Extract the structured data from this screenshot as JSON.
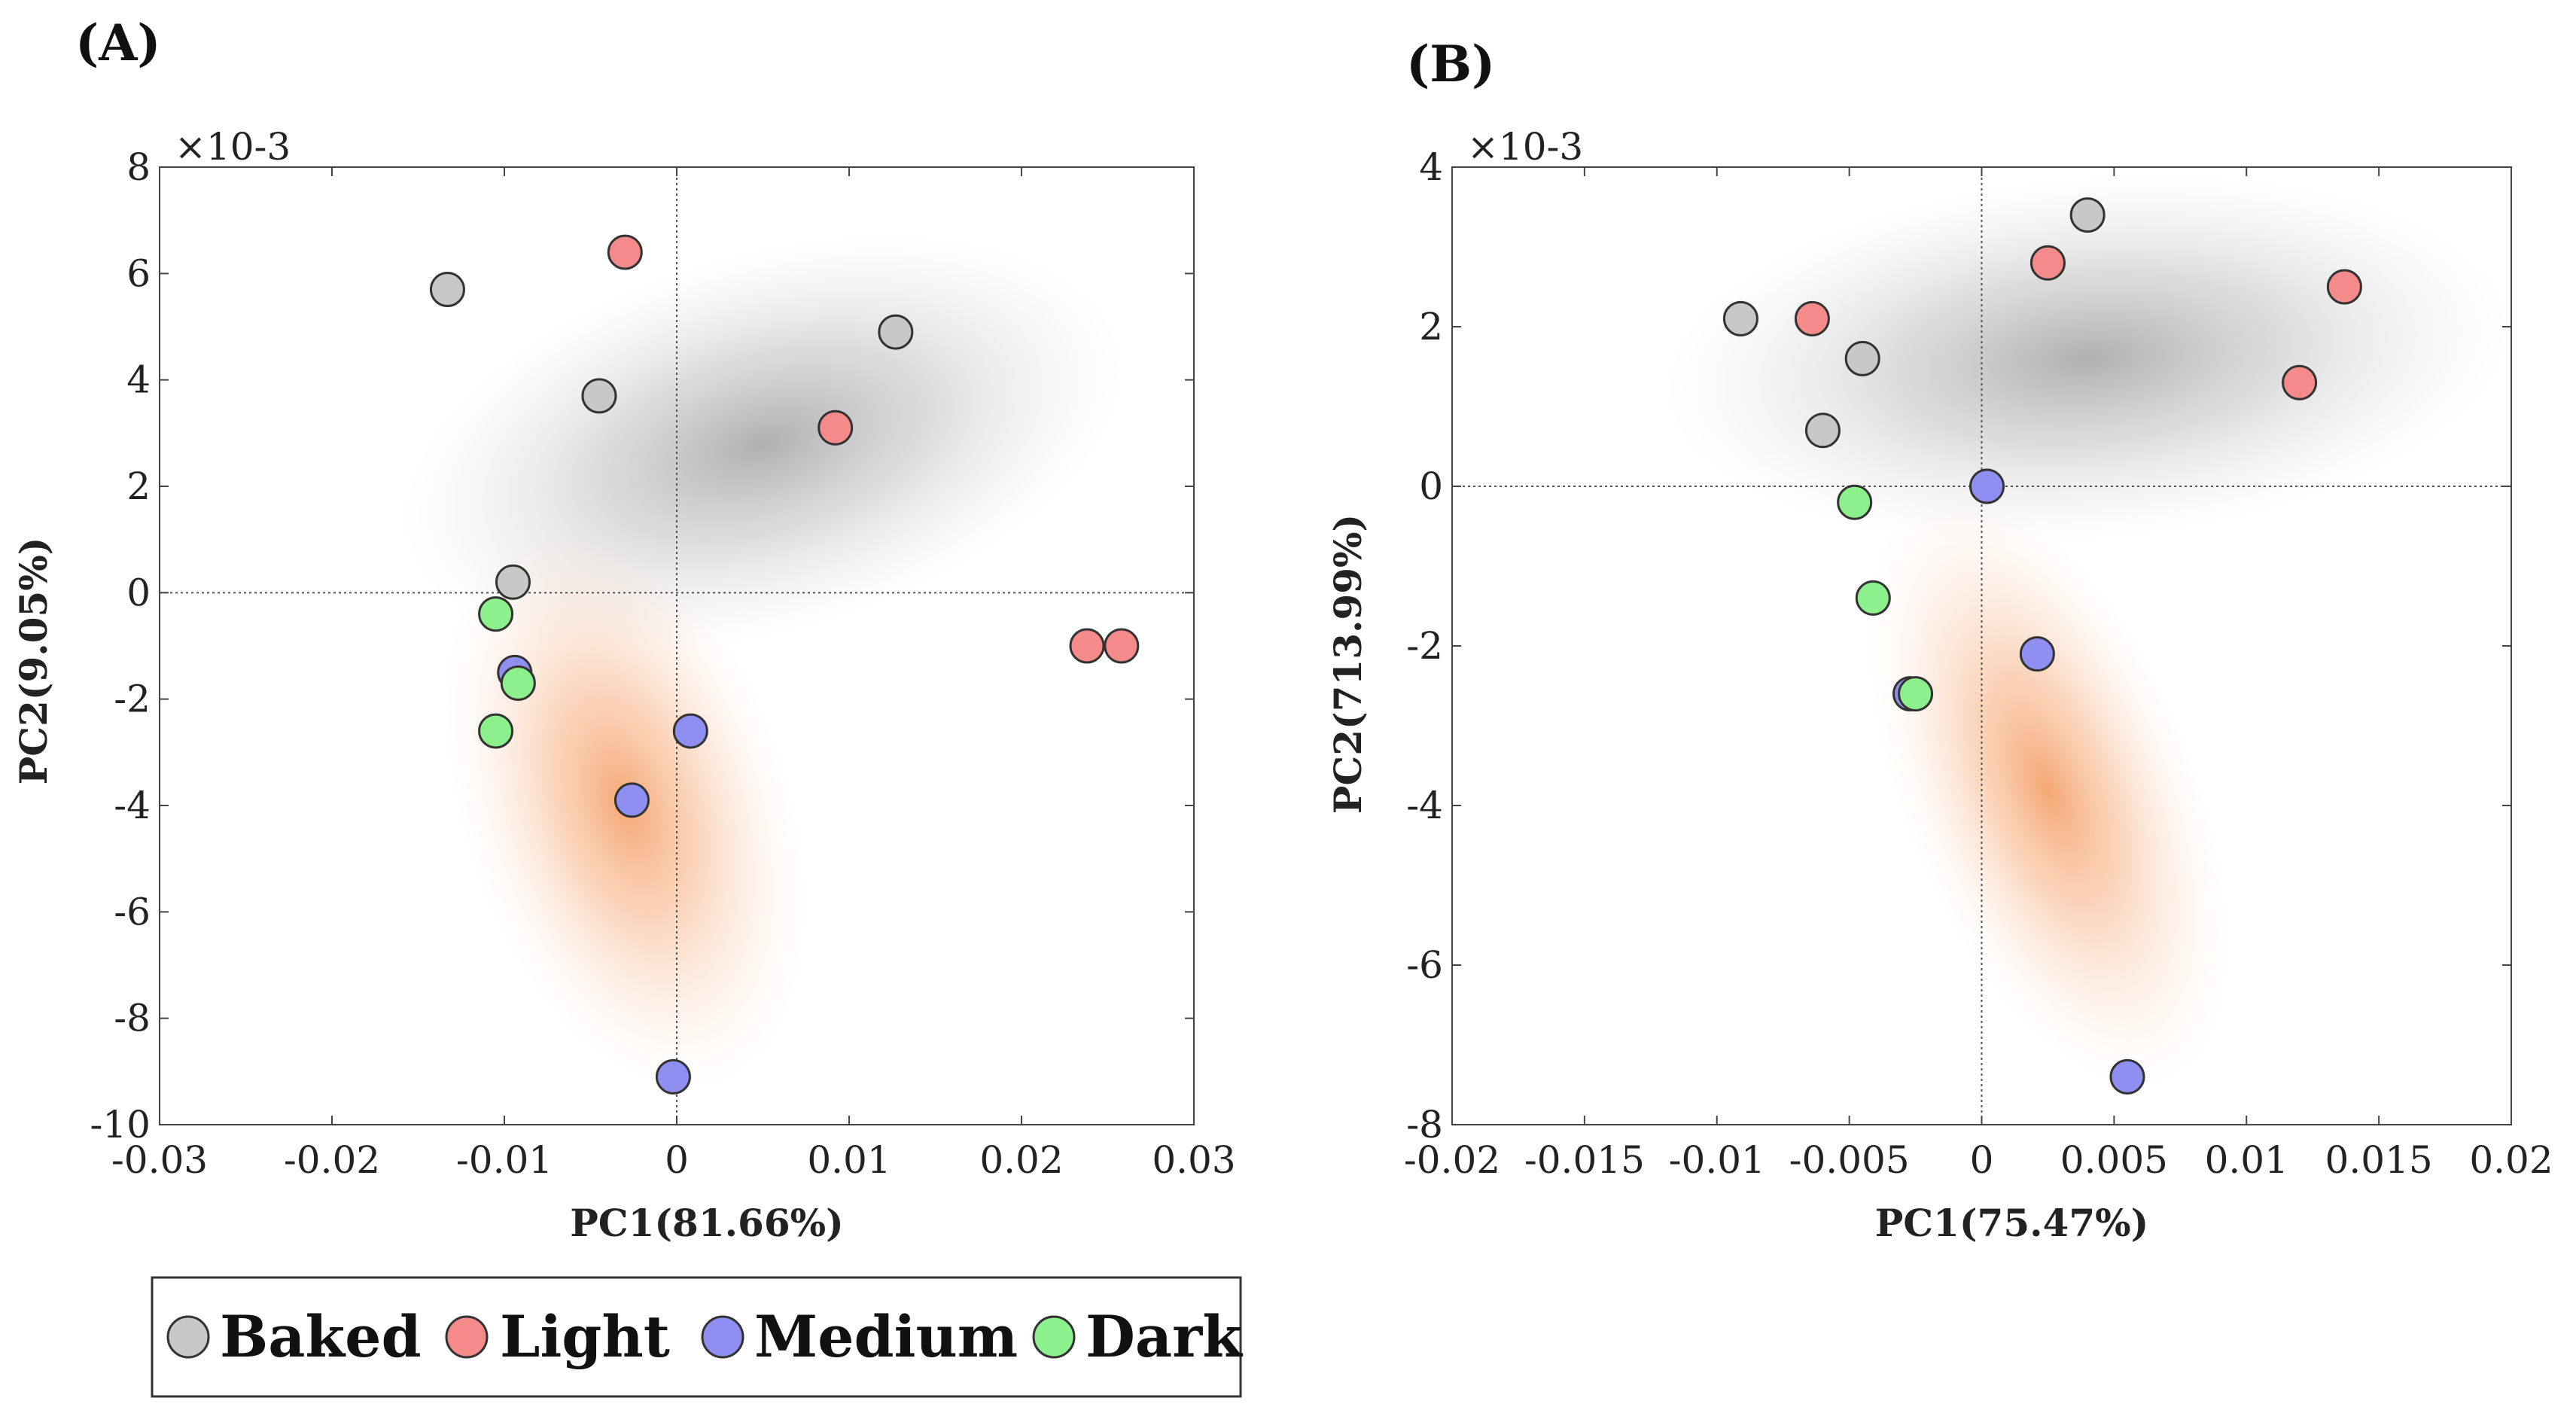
{
  "colors": {
    "Baked": "#c8c8c8",
    "Light": "#f48a8a",
    "Medium": "#8f8ff2",
    "Dark": "#8cf08c",
    "grayCloud": "#9a9a9a",
    "orangeCloud": "#f29a5c"
  },
  "legend": {
    "items": [
      {
        "label": "Baked",
        "color": "#c8c8c8"
      },
      {
        "label": "Light",
        "color": "#f48a8a"
      },
      {
        "label": "Medium",
        "color": "#8f8ff2"
      },
      {
        "label": "Dark",
        "color": "#8cf08c"
      }
    ]
  },
  "chart_data": [
    {
      "type": "scatter",
      "panel": "(A)",
      "xlabel": "PC1(81.66%)",
      "ylabel": "PC2(9.05%)",
      "y_multiplier": "×10-3",
      "xlim": [
        -0.03,
        0.03
      ],
      "ylim": [
        -10,
        8
      ],
      "xticks": [
        "-0.03",
        "-0.02",
        "-0.01",
        "0",
        "0.01",
        "0.02",
        "0.03"
      ],
      "yticks": [
        "8",
        "6",
        "4",
        "2",
        "0",
        "-2",
        "-4",
        "-6",
        "-8",
        "-10"
      ],
      "series": [
        {
          "name": "Baked",
          "points": [
            [
              -0.0133,
              5.7
            ],
            [
              -0.0045,
              3.7
            ],
            [
              0.0127,
              4.9
            ],
            [
              -0.0095,
              0.2
            ]
          ]
        },
        {
          "name": "Light",
          "points": [
            [
              -0.003,
              6.4
            ],
            [
              0.0092,
              3.1
            ],
            [
              0.0238,
              -1.0
            ],
            [
              0.0258,
              -1.0
            ]
          ]
        },
        {
          "name": "Medium",
          "points": [
            [
              -0.0094,
              -1.5
            ],
            [
              0.0008,
              -2.6
            ],
            [
              -0.0026,
              -3.9
            ],
            [
              -0.0002,
              -9.1
            ]
          ]
        },
        {
          "name": "Dark",
          "points": [
            [
              -0.0105,
              -0.4
            ],
            [
              -0.0092,
              -1.7
            ],
            [
              -0.0105,
              -2.6
            ]
          ]
        }
      ],
      "clouds": [
        {
          "name": "gray",
          "center": [
            0.005,
            2.8
          ],
          "rx": 0.0215,
          "ry": 3.6,
          "angle": -16
        },
        {
          "name": "orange",
          "center": [
            -0.003,
            -4.0
          ],
          "rx": 0.0095,
          "ry": 5.6,
          "angle": -18
        }
      ]
    },
    {
      "type": "scatter",
      "panel": "(B)",
      "xlabel": "PC1(75.47%)",
      "ylabel": "PC2(713.99%)",
      "y_multiplier": "×10-3",
      "xlim": [
        -0.02,
        0.02
      ],
      "ylim": [
        -8,
        4
      ],
      "xticks": [
        "-0.02",
        "-0.015",
        "-0.01",
        "-0.005",
        "0",
        "0.005",
        "0.01",
        "0.015",
        "0.02"
      ],
      "yticks": [
        "4",
        "2",
        "0",
        "-2",
        "-4",
        "-6",
        "-8"
      ],
      "series": [
        {
          "name": "Baked",
          "points": [
            [
              0.004,
              3.4
            ],
            [
              -0.0091,
              2.1
            ],
            [
              -0.0045,
              1.6
            ],
            [
              -0.006,
              0.7
            ]
          ]
        },
        {
          "name": "Light",
          "points": [
            [
              0.0025,
              2.8
            ],
            [
              -0.0064,
              2.1
            ],
            [
              0.0137,
              2.5
            ],
            [
              0.012,
              1.3
            ]
          ]
        },
        {
          "name": "Medium",
          "points": [
            [
              0.0002,
              0.0
            ],
            [
              0.0021,
              -2.1
            ],
            [
              -0.0027,
              -2.6
            ],
            [
              0.0055,
              -7.4
            ]
          ]
        },
        {
          "name": "Dark",
          "points": [
            [
              -0.0048,
              -0.2
            ],
            [
              -0.0041,
              -1.4
            ],
            [
              -0.0025,
              -2.6
            ]
          ]
        }
      ],
      "clouds": [
        {
          "name": "gray",
          "center": [
            0.004,
            1.6
          ],
          "rx": 0.016,
          "ry": 2.3,
          "angle": -5
        },
        {
          "name": "orange",
          "center": [
            0.0025,
            -3.8
          ],
          "rx": 0.0055,
          "ry": 4.0,
          "angle": -22
        }
      ]
    }
  ]
}
